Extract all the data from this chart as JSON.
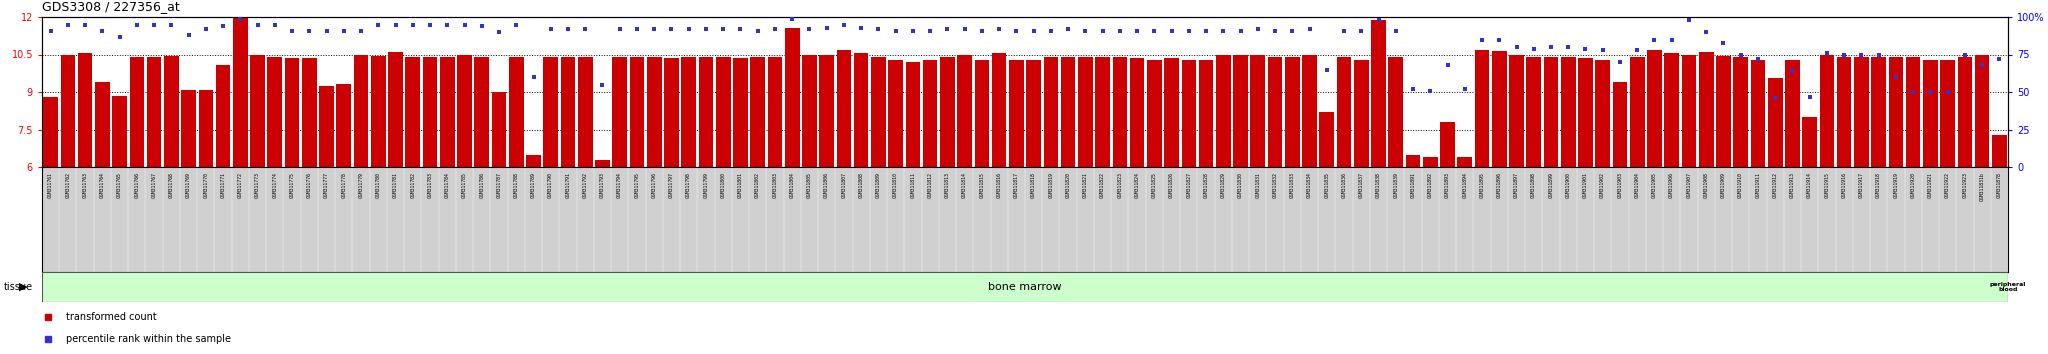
{
  "title": "GDS3308 / 227356_at",
  "bar_color": "#cc0000",
  "dot_color": "#3333cc",
  "bg_color": "#ffffff",
  "left_ylim": [
    6,
    12
  ],
  "left_yticks": [
    6,
    7.5,
    9,
    10.5,
    12
  ],
  "left_yticklabels": [
    "6",
    "7.5",
    "9",
    "10.5",
    "12"
  ],
  "right_ylim": [
    0,
    100
  ],
  "right_yticks": [
    0,
    25,
    50,
    75,
    100
  ],
  "right_yticklabels": [
    "0",
    "25",
    "50",
    "75",
    "100%"
  ],
  "grid_lines": [
    7.5,
    9,
    10.5
  ],
  "tissue_bm_color": "#ccffcc",
  "tissue_pb_color": "#44bb44",
  "tissue_bm_label": "bone marrow",
  "tissue_pb_label": "peripheral\nblood",
  "xlabel_bg_color": "#d0d0d0",
  "xlabel_bg_edgecolor": "#000000",
  "legend_bar_label": "transformed count",
  "legend_dot_label": "percentile rank within the sample",
  "tissue_label": "tissue",
  "samples": [
    "GSM311761",
    "GSM311762",
    "GSM311763",
    "GSM311764",
    "GSM311765",
    "GSM311766",
    "GSM311767",
    "GSM311768",
    "GSM311769",
    "GSM311770",
    "GSM311771",
    "GSM311772",
    "GSM311773",
    "GSM311774",
    "GSM311775",
    "GSM311776",
    "GSM311777",
    "GSM311778",
    "GSM311779",
    "GSM311780",
    "GSM311781",
    "GSM311782",
    "GSM311783",
    "GSM311784",
    "GSM311785",
    "GSM311786",
    "GSM311787",
    "GSM311788",
    "GSM311789",
    "GSM311790",
    "GSM311791",
    "GSM311792",
    "GSM311793",
    "GSM311794",
    "GSM311795",
    "GSM311796",
    "GSM311797",
    "GSM311798",
    "GSM311799",
    "GSM311800",
    "GSM311801",
    "GSM311802",
    "GSM311803",
    "GSM311804",
    "GSM311805",
    "GSM311806",
    "GSM311807",
    "GSM311808",
    "GSM311809",
    "GSM311810",
    "GSM311811",
    "GSM311812",
    "GSM311813",
    "GSM311814",
    "GSM311815",
    "GSM311816",
    "GSM311817",
    "GSM311818",
    "GSM311819",
    "GSM311820",
    "GSM311821",
    "GSM311822",
    "GSM311823",
    "GSM311824",
    "GSM311825",
    "GSM311826",
    "GSM311827",
    "GSM311828",
    "GSM311829",
    "GSM311830",
    "GSM311831",
    "GSM311832",
    "GSM311833",
    "GSM311834",
    "GSM311835",
    "GSM311836",
    "GSM311837",
    "GSM311838",
    "GSM311839",
    "GSM311891",
    "GSM311892",
    "GSM311893",
    "GSM311894",
    "GSM311895",
    "GSM311896",
    "GSM311897",
    "GSM311898",
    "GSM311899",
    "GSM311900",
    "GSM311901",
    "GSM311902",
    "GSM311903",
    "GSM311904",
    "GSM311905",
    "GSM311906",
    "GSM311907",
    "GSM311908",
    "GSM311909",
    "GSM311910",
    "GSM311911",
    "GSM311912",
    "GSM311913",
    "GSM311914",
    "GSM311915",
    "GSM311916",
    "GSM311917",
    "GSM311918",
    "GSM311919",
    "GSM311920",
    "GSM311921",
    "GSM311922",
    "GSM311923",
    "GSM311831b",
    "GSM311878"
  ],
  "bar_values": [
    8.8,
    10.5,
    10.55,
    9.4,
    8.85,
    10.4,
    10.4,
    10.45,
    9.1,
    9.1,
    10.1,
    11.95,
    10.5,
    10.4,
    10.35,
    10.35,
    9.25,
    9.3,
    10.5,
    10.45,
    10.6,
    10.4,
    10.4,
    10.4,
    10.5,
    10.4,
    9.0,
    10.4,
    6.5,
    10.4,
    10.4,
    10.4,
    6.3,
    10.4,
    10.4,
    10.4,
    10.35,
    10.4,
    10.4,
    10.4,
    10.35,
    10.4,
    10.4,
    11.55,
    10.5,
    10.5,
    10.7,
    10.55,
    10.4,
    10.3,
    10.2,
    10.3,
    10.4,
    10.5,
    10.3,
    10.55,
    10.3,
    10.3,
    10.4,
    10.4,
    10.4,
    10.4,
    10.4,
    10.35,
    10.3,
    10.35,
    10.3,
    10.3,
    10.5,
    10.5,
    10.5,
    10.4,
    10.4,
    10.5,
    8.2,
    10.4,
    10.3,
    11.9,
    10.4,
    6.5,
    6.4,
    7.8,
    6.4,
    10.7,
    10.65,
    10.5,
    10.4,
    10.4,
    10.4,
    10.35,
    10.3,
    9.4,
    10.4,
    10.7,
    10.55,
    10.5,
    10.6,
    10.45,
    10.4,
    10.3,
    9.55,
    10.3,
    8.0,
    10.5,
    10.4,
    10.4,
    10.4,
    10.4,
    10.4,
    10.3,
    10.3,
    10.4,
    10.5,
    7.3
  ],
  "dot_values": [
    91,
    95,
    95,
    91,
    87,
    95,
    95,
    95,
    88,
    92,
    94,
    99,
    95,
    95,
    91,
    91,
    91,
    91,
    91,
    95,
    95,
    95,
    95,
    95,
    95,
    94,
    90,
    95,
    60,
    92,
    92,
    92,
    55,
    92,
    92,
    92,
    92,
    92,
    92,
    92,
    92,
    91,
    92,
    99,
    92,
    93,
    95,
    93,
    92,
    91,
    91,
    91,
    92,
    92,
    91,
    92,
    91,
    91,
    91,
    92,
    91,
    91,
    91,
    91,
    91,
    91,
    91,
    91,
    91,
    91,
    92,
    91,
    91,
    92,
    65,
    91,
    91,
    98,
    91,
    52,
    51,
    68,
    52,
    85,
    85,
    80,
    79,
    80,
    80,
    79,
    78,
    70,
    78,
    85,
    85,
    98,
    90,
    83,
    75,
    72,
    46,
    64,
    47,
    76,
    75,
    75,
    75,
    60,
    50,
    50,
    50,
    75,
    68,
    72
  ],
  "n_bone_marrow": 114
}
